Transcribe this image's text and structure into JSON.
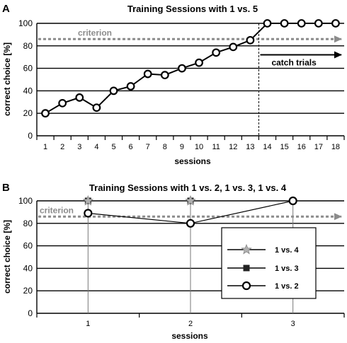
{
  "colors": {
    "criterion": "#8c8c8c",
    "series": "#000000",
    "gray_marker": "#b0b0b0"
  },
  "chart_data": [
    {
      "panel": "A",
      "type": "line",
      "title": "Training Sessions with 1 vs. 5",
      "xlabel": "sessions",
      "ylabel": "correct choice [%]",
      "ylim": [
        0,
        100
      ],
      "yticks": [
        0,
        20,
        40,
        60,
        80,
        100
      ],
      "categories": [
        "1",
        "2",
        "3",
        "4",
        "5",
        "6",
        "7",
        "8",
        "9",
        "10",
        "11",
        "12",
        "13",
        "14",
        "15",
        "16",
        "17",
        "18"
      ],
      "series": [
        {
          "marker": "open-circle",
          "values": [
            20,
            29,
            34,
            25,
            40,
            44,
            55,
            54,
            60,
            65,
            74,
            79,
            85,
            100,
            100,
            100,
            100,
            100
          ]
        }
      ],
      "criterion": {
        "label": "criterion",
        "value": 86
      },
      "annotation": {
        "label": "catch trials",
        "start_after_session": 13
      },
      "grid": "horizontal"
    },
    {
      "panel": "B",
      "type": "line",
      "title": "Training Sessions with 1 vs. 2, 1 vs. 3, 1 vs. 4",
      "xlabel": "sessions",
      "ylabel": "correct choice [%]",
      "ylim": [
        0,
        100
      ],
      "yticks": [
        0,
        20,
        40,
        60,
        80,
        100
      ],
      "categories": [
        "1",
        "2",
        "3"
      ],
      "series": [
        {
          "name": "1 vs. 4",
          "marker": "gray-star",
          "values": [
            100,
            100,
            null
          ]
        },
        {
          "name": "1 vs. 3",
          "marker": "filled-square",
          "values": [
            100,
            100,
            null
          ]
        },
        {
          "name": "1 vs. 2",
          "marker": "open-circle",
          "values": [
            89,
            80,
            100
          ]
        }
      ],
      "criterion": {
        "label": "criterion",
        "value": 86
      },
      "legend": "lower-right",
      "grid": "horizontal"
    }
  ]
}
